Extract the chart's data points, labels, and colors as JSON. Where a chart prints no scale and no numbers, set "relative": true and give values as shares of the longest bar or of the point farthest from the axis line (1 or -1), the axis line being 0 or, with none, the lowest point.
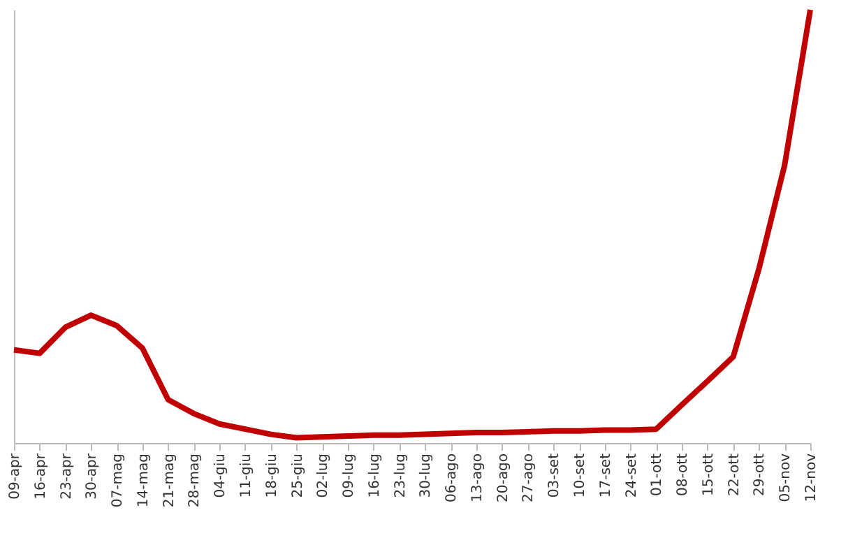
{
  "chart_data": {
    "type": "line",
    "relative": true,
    "color": "#c00000",
    "categories": [
      "09-apr",
      "16-apr",
      "23-apr",
      "30-apr",
      "07-mag",
      "14-mag",
      "21-mag",
      "28-mag",
      "04-giu",
      "11-giu",
      "18-giu",
      "25-giu",
      "02-lug",
      "09-lug",
      "16-lug",
      "23-lug",
      "30-lug",
      "06-ago",
      "13-ago",
      "20-ago",
      "27-ago",
      "03-set",
      "10-set",
      "17-set",
      "24-set",
      "01-ott",
      "08-ott",
      "15-ott",
      "22-ott",
      "29-ott",
      "05-nov",
      "12-nov"
    ],
    "values": [
      0.215,
      0.207,
      0.267,
      0.295,
      0.271,
      0.219,
      0.1,
      0.068,
      0.044,
      0.032,
      0.02,
      0.012,
      0.014,
      0.016,
      0.018,
      0.018,
      0.02,
      0.022,
      0.024,
      0.024,
      0.026,
      0.028,
      0.028,
      0.03,
      0.03,
      0.032,
      0.088,
      0.143,
      0.199,
      0.402,
      0.641,
      1.0
    ]
  }
}
